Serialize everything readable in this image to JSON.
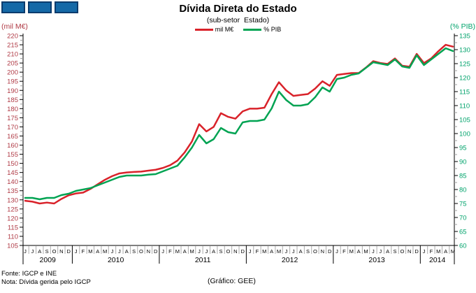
{
  "page": {
    "title": "Dívida Direta do Estado",
    "subtitle": "(sub-setor  Estado)",
    "footer": {
      "fonte": "Fonte: IGCP e INE",
      "nota": "Nota: Dívida gerida pelo IGCP",
      "credit": "(Gráfico: GEE)"
    }
  },
  "logo": {
    "fill": "#1569A7",
    "border": "#0C3C6E",
    "count": 3
  },
  "legend": {
    "items": [
      {
        "label": "mil M€",
        "color": "#D9222A"
      },
      {
        "label": "% PIB",
        "color": "#00A352"
      }
    ]
  },
  "chart_data": {
    "type": "line",
    "title": "Dívida Direta do Estado",
    "subtitle": "(sub-setor Estado)",
    "grid": false,
    "legend_position": "top-center",
    "left_axis": {
      "label": "(mil M€)",
      "min": 105,
      "max": 220,
      "step": 5,
      "color": "#B03A45"
    },
    "right_axis": {
      "label": "(% PIB)",
      "min": 60,
      "max": 135,
      "step": 5,
      "color": "#00A36B"
    },
    "x": {
      "months": [
        "J",
        "J",
        "A",
        "S",
        "O",
        "N",
        "D",
        "J",
        "F",
        "M",
        "A",
        "M",
        "J",
        "J",
        "A",
        "S",
        "O",
        "N",
        "D",
        "J",
        "F",
        "M",
        "A",
        "M",
        "J",
        "J",
        "A",
        "S",
        "O",
        "N",
        "D",
        "J",
        "F",
        "M",
        "A",
        "M",
        "J",
        "J",
        "A",
        "S",
        "O",
        "N",
        "D",
        "J",
        "F",
        "M",
        "A",
        "M",
        "J",
        "J",
        "A",
        "S",
        "O",
        "N",
        "D",
        "J",
        "F",
        "M",
        "A",
        "M"
      ],
      "year_groups": [
        {
          "label": "2009",
          "months": 7
        },
        {
          "label": "2010",
          "months": 12
        },
        {
          "label": "2011",
          "months": 12
        },
        {
          "label": "2012",
          "months": 12
        },
        {
          "label": "2013",
          "months": 12
        },
        {
          "label": "2014",
          "months": 5
        }
      ],
      "start": "Jun 2009",
      "end": "May 2014"
    },
    "series": [
      {
        "name": "mil M€",
        "axis": "left",
        "color": "#D9222A",
        "values": [
          129.5,
          129,
          128,
          128.5,
          128,
          130.5,
          132.5,
          133.5,
          134,
          136,
          138.5,
          141,
          143,
          144.5,
          145,
          145.3,
          145.5,
          146,
          146.5,
          147.5,
          149,
          151.5,
          156,
          162,
          171.5,
          167.5,
          170,
          177.5,
          175.5,
          174.5,
          178.5,
          180,
          180,
          180.5,
          188,
          194.5,
          190,
          187,
          187.5,
          188,
          191,
          195,
          192.5,
          198.5,
          199,
          199.5,
          199.5,
          202.5,
          206,
          205,
          204.5,
          207.5,
          203.5,
          203,
          210,
          205,
          207.5,
          211.5,
          215,
          214
        ]
      },
      {
        "name": "% PIB",
        "axis": "right",
        "color": "#00A352",
        "values": [
          77,
          77,
          76.5,
          77,
          77,
          78,
          78.5,
          79.5,
          80,
          80.5,
          81.5,
          82.5,
          83.5,
          84.5,
          85,
          85,
          85,
          85.3,
          85.5,
          86.5,
          87.5,
          88.5,
          91.5,
          95,
          99.5,
          96.5,
          98,
          102,
          100.5,
          100,
          104,
          104.5,
          104.5,
          105,
          109,
          115,
          112,
          110,
          110,
          110.5,
          113,
          116.5,
          115,
          119.5,
          120,
          121,
          121.5,
          123.5,
          125.5,
          125,
          124.5,
          126.5,
          124,
          123.5,
          128,
          124.5,
          126.5,
          128.5,
          130.5,
          129.5
        ]
      }
    ]
  }
}
